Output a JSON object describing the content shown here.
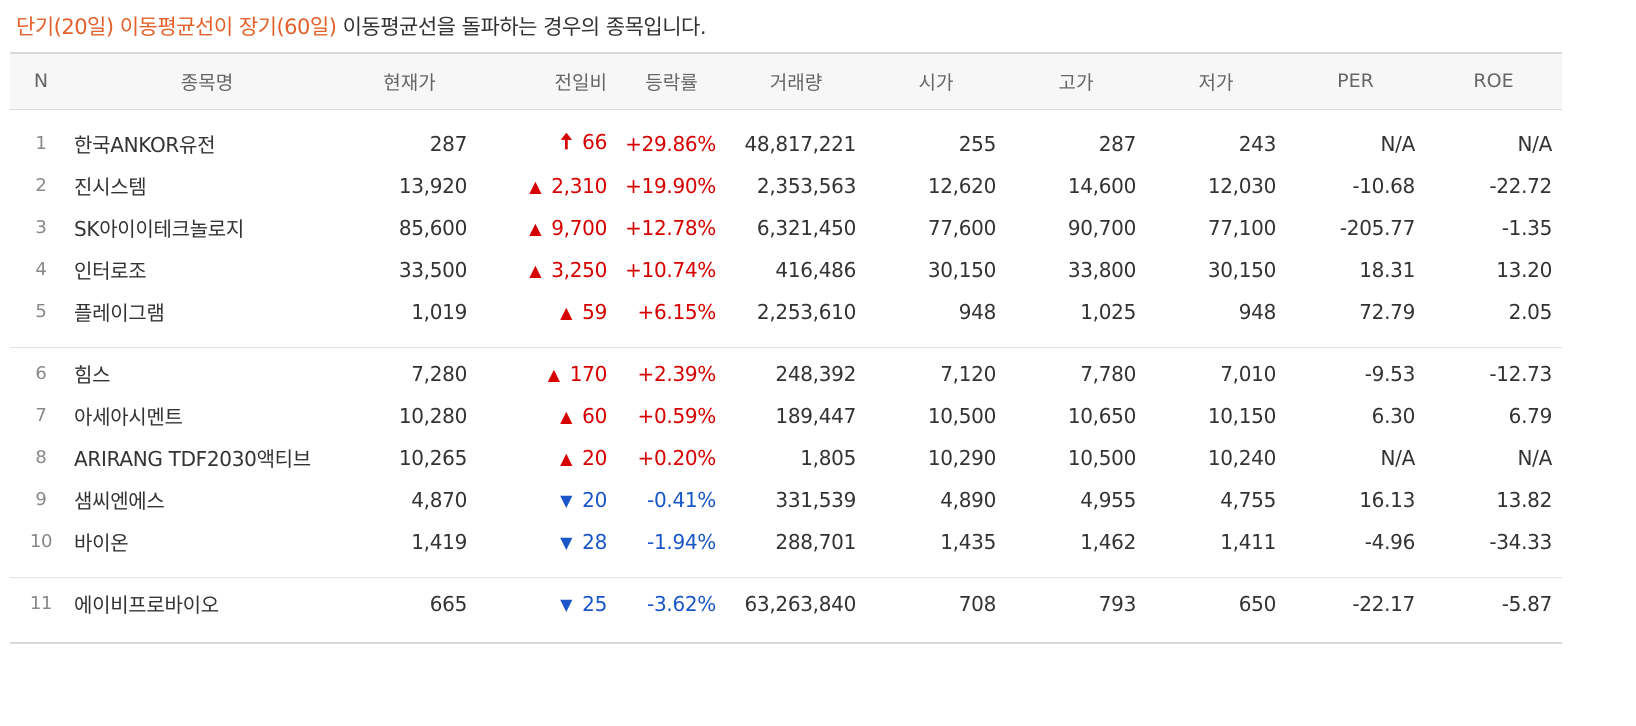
{
  "description": {
    "accent": "단기(20일) 이동평균선이 장기(60일)",
    "rest": " 이동평균선을 돌파하는 경우의 종목입니다."
  },
  "columns": [
    "N",
    "종목명",
    "현재가",
    "전일비",
    "등락률",
    "거래량",
    "시가",
    "고가",
    "저가",
    "PER",
    "ROE"
  ],
  "arrows": {
    "limit_up": "🠅",
    "up": "▲",
    "down": "▼"
  },
  "colors": {
    "accent": "#e4602a",
    "up": "#d60000",
    "down": "#1a56c8"
  },
  "groups": [
    [
      {
        "n": "1",
        "name": "한국ANKOR유전",
        "price": "287",
        "dir": "limit_up",
        "change": "66",
        "rate": "+29.86%",
        "volume": "48,817,221",
        "open": "255",
        "high": "287",
        "low": "243",
        "per": "N/A",
        "roe": "N/A"
      },
      {
        "n": "2",
        "name": "진시스템",
        "price": "13,920",
        "dir": "up",
        "change": "2,310",
        "rate": "+19.90%",
        "volume": "2,353,563",
        "open": "12,620",
        "high": "14,600",
        "low": "12,030",
        "per": "-10.68",
        "roe": "-22.72"
      },
      {
        "n": "3",
        "name": "SK아이이테크놀로지",
        "price": "85,600",
        "dir": "up",
        "change": "9,700",
        "rate": "+12.78%",
        "volume": "6,321,450",
        "open": "77,600",
        "high": "90,700",
        "low": "77,100",
        "per": "-205.77",
        "roe": "-1.35"
      },
      {
        "n": "4",
        "name": "인터로조",
        "price": "33,500",
        "dir": "up",
        "change": "3,250",
        "rate": "+10.74%",
        "volume": "416,486",
        "open": "30,150",
        "high": "33,800",
        "low": "30,150",
        "per": "18.31",
        "roe": "13.20"
      },
      {
        "n": "5",
        "name": "플레이그램",
        "price": "1,019",
        "dir": "up",
        "change": "59",
        "rate": "+6.15%",
        "volume": "2,253,610",
        "open": "948",
        "high": "1,025",
        "low": "948",
        "per": "72.79",
        "roe": "2.05"
      }
    ],
    [
      {
        "n": "6",
        "name": "힘스",
        "price": "7,280",
        "dir": "up",
        "change": "170",
        "rate": "+2.39%",
        "volume": "248,392",
        "open": "7,120",
        "high": "7,780",
        "low": "7,010",
        "per": "-9.53",
        "roe": "-12.73"
      },
      {
        "n": "7",
        "name": "아세아시멘트",
        "price": "10,280",
        "dir": "up",
        "change": "60",
        "rate": "+0.59%",
        "volume": "189,447",
        "open": "10,500",
        "high": "10,650",
        "low": "10,150",
        "per": "6.30",
        "roe": "6.79"
      },
      {
        "n": "8",
        "name": "ARIRANG TDF2030액티브",
        "price": "10,265",
        "dir": "up",
        "change": "20",
        "rate": "+0.20%",
        "volume": "1,805",
        "open": "10,290",
        "high": "10,500",
        "low": "10,240",
        "per": "N/A",
        "roe": "N/A"
      },
      {
        "n": "9",
        "name": "샘씨엔에스",
        "price": "4,870",
        "dir": "down",
        "change": "20",
        "rate": "-0.41%",
        "volume": "331,539",
        "open": "4,890",
        "high": "4,955",
        "low": "4,755",
        "per": "16.13",
        "roe": "13.82"
      },
      {
        "n": "10",
        "name": "바이온",
        "price": "1,419",
        "dir": "down",
        "change": "28",
        "rate": "-1.94%",
        "volume": "288,701",
        "open": "1,435",
        "high": "1,462",
        "low": "1,411",
        "per": "-4.96",
        "roe": "-34.33"
      }
    ],
    [
      {
        "n": "11",
        "name": "에이비프로바이오",
        "price": "665",
        "dir": "down",
        "change": "25",
        "rate": "-3.62%",
        "volume": "63,263,840",
        "open": "708",
        "high": "793",
        "low": "650",
        "per": "-22.17",
        "roe": "-5.87"
      }
    ]
  ]
}
